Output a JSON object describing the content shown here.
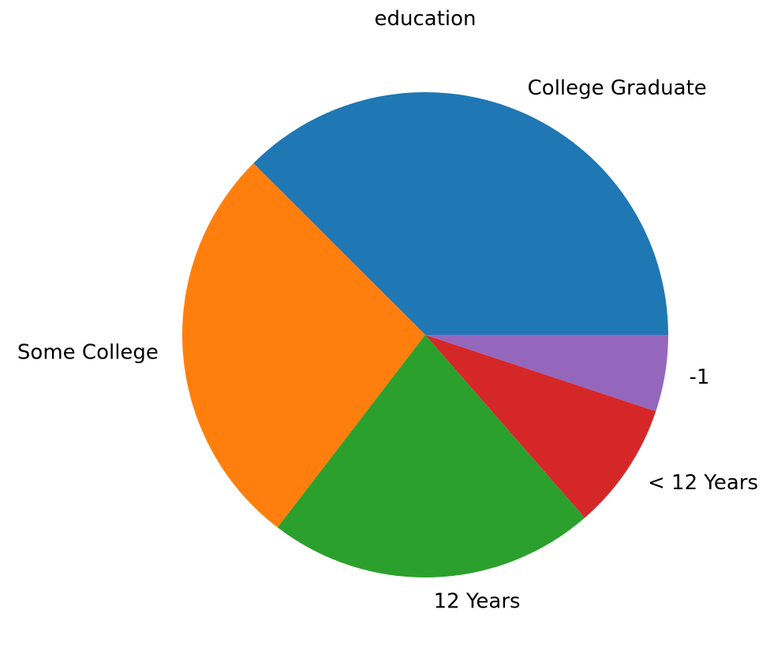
{
  "chart_data": {
    "type": "pie",
    "title": "education",
    "start_angle": 0,
    "direction": "counterclockwise",
    "slices": [
      {
        "label": "College Graduate",
        "value": 37.5,
        "color": "#1f77b4"
      },
      {
        "label": "Some College",
        "value": 27.1,
        "color": "#ff7f0e"
      },
      {
        "label": "12 Years",
        "value": 21.8,
        "color": "#2ca02c"
      },
      {
        "label": "< 12 Years",
        "value": 8.5,
        "color": "#d62728"
      },
      {
        "label": "-1",
        "value": 5.1,
        "color": "#9467bd"
      }
    ]
  }
}
